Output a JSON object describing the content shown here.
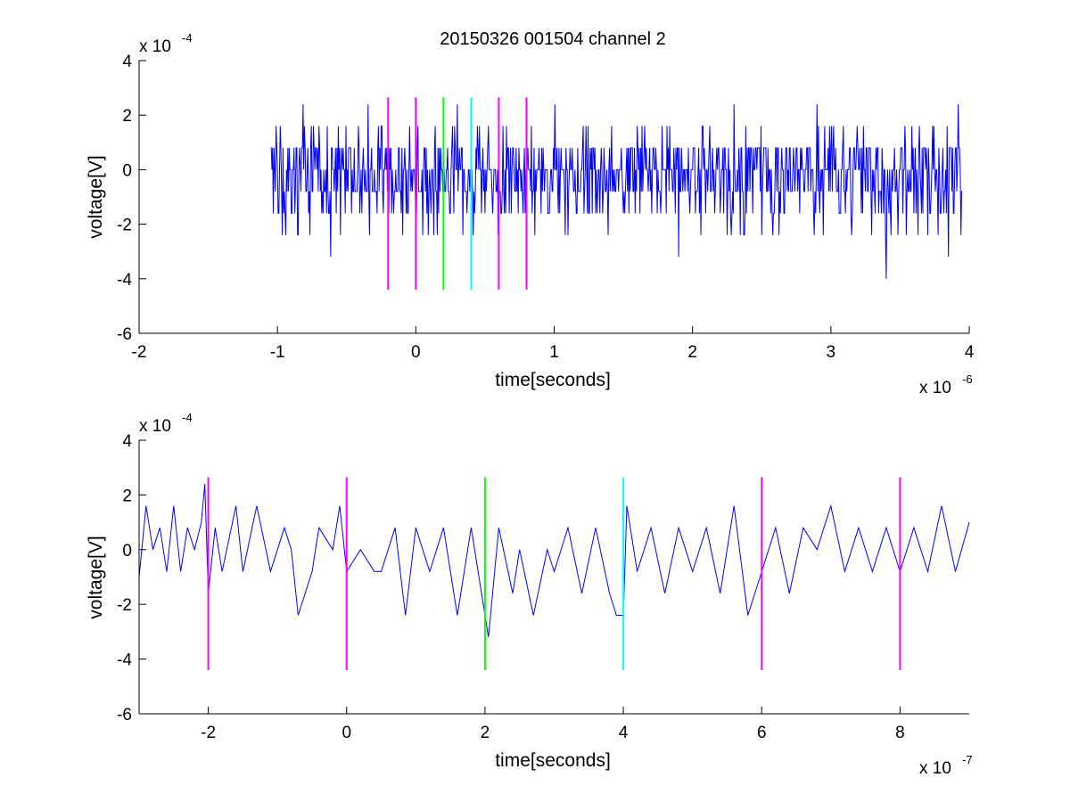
{
  "chart_data": [
    {
      "type": "line",
      "title": "20150326 001504 channel 2",
      "xlabel": "time[seconds]",
      "ylabel": "voltage[V]",
      "x_multiplier": "x 10",
      "x_exponent": "-6",
      "y_multiplier": "x 10",
      "y_exponent": "-4",
      "xlim": [
        -2,
        4
      ],
      "ylim": [
        -6,
        4
      ],
      "x_ticks": [
        -2,
        -1,
        0,
        1,
        2,
        3,
        4
      ],
      "y_ticks": [
        -6,
        -4,
        -2,
        0,
        2,
        4
      ],
      "grid": false,
      "signal": {
        "color": "#0000ff",
        "x_range": [
          -1.05,
          3.95
        ],
        "y_range": [
          -4.0,
          2.4
        ],
        "quantization_step": 0.8,
        "baseline": 0,
        "representative_points": [
          {
            "x": -1.05,
            "y": 0.8
          },
          {
            "x": -1.03,
            "y": -1.6
          },
          {
            "x": -0.98,
            "y": 1.6
          },
          {
            "x": -0.92,
            "y": -0.8
          },
          {
            "x": -0.82,
            "y": 2.4
          },
          {
            "x": -0.75,
            "y": -0.8
          },
          {
            "x": -0.62,
            "y": -3.2
          },
          {
            "x": -0.58,
            "y": -1.6
          },
          {
            "x": -0.35,
            "y": 2.4
          },
          {
            "x": -0.2,
            "y": -1.6
          },
          {
            "x": 0.05,
            "y": -2.4
          },
          {
            "x": 0.3,
            "y": 2.4
          },
          {
            "x": 0.5,
            "y": -1.6
          },
          {
            "x": 0.85,
            "y": 0.8
          },
          {
            "x": 1.0,
            "y": 2.4
          },
          {
            "x": 1.3,
            "y": -1.6
          },
          {
            "x": 1.55,
            "y": -0.8
          },
          {
            "x": 1.9,
            "y": -3.2
          },
          {
            "x": 2.3,
            "y": 2.4
          },
          {
            "x": 2.5,
            "y": -2.4
          },
          {
            "x": 2.9,
            "y": 2.4
          },
          {
            "x": 3.15,
            "y": -2.4
          },
          {
            "x": 3.4,
            "y": -4.0
          },
          {
            "x": 3.6,
            "y": -1.6
          },
          {
            "x": 3.85,
            "y": -3.2
          },
          {
            "x": 3.92,
            "y": 2.4
          },
          {
            "x": 3.95,
            "y": -0.8
          }
        ]
      },
      "markers": [
        {
          "x": -0.2,
          "color": "#ff00ff",
          "ymin": -4.4,
          "ymax": 2.65
        },
        {
          "x": 0.0,
          "color": "#ff00ff",
          "ymin": -4.4,
          "ymax": 2.65
        },
        {
          "x": 0.2,
          "color": "#00ff00",
          "ymin": -4.4,
          "ymax": 2.65
        },
        {
          "x": 0.4,
          "color": "#00ffff",
          "ymin": -4.4,
          "ymax": 2.65
        },
        {
          "x": 0.6,
          "color": "#ff00ff",
          "ymin": -4.4,
          "ymax": 2.65
        },
        {
          "x": 0.8,
          "color": "#ff00ff",
          "ymin": -4.4,
          "ymax": 2.65
        }
      ]
    },
    {
      "type": "line",
      "title": "",
      "xlabel": "time[seconds]",
      "ylabel": "voltage[V]",
      "x_multiplier": "x 10",
      "x_exponent": "-7",
      "y_multiplier": "x 10",
      "y_exponent": "-4",
      "xlim": [
        -3,
        9
      ],
      "ylim": [
        -6,
        4
      ],
      "x_ticks": [
        -2,
        0,
        2,
        4,
        6,
        8
      ],
      "y_ticks": [
        -6,
        -4,
        -2,
        0,
        2,
        4
      ],
      "grid": false,
      "signal": {
        "color": "#0000ff",
        "x_range": [
          -3,
          9
        ],
        "points": [
          {
            "x": -3.0,
            "y": -1.0
          },
          {
            "x": -2.9,
            "y": 1.6
          },
          {
            "x": -2.8,
            "y": 0.0
          },
          {
            "x": -2.7,
            "y": 0.8
          },
          {
            "x": -2.6,
            "y": -0.8
          },
          {
            "x": -2.5,
            "y": 1.6
          },
          {
            "x": -2.4,
            "y": -0.8
          },
          {
            "x": -2.3,
            "y": 0.8
          },
          {
            "x": -2.2,
            "y": 0.0
          },
          {
            "x": -2.1,
            "y": 1.0
          },
          {
            "x": -2.05,
            "y": 2.4
          },
          {
            "x": -2.0,
            "y": -1.6
          },
          {
            "x": -1.9,
            "y": 0.8
          },
          {
            "x": -1.8,
            "y": -0.8
          },
          {
            "x": -1.6,
            "y": 1.6
          },
          {
            "x": -1.5,
            "y": -0.8
          },
          {
            "x": -1.3,
            "y": 1.6
          },
          {
            "x": -1.1,
            "y": -0.8
          },
          {
            "x": -0.9,
            "y": 0.8
          },
          {
            "x": -0.8,
            "y": 0.0
          },
          {
            "x": -0.7,
            "y": -2.4
          },
          {
            "x": -0.5,
            "y": -0.8
          },
          {
            "x": -0.4,
            "y": 0.8
          },
          {
            "x": -0.2,
            "y": 0.0
          },
          {
            "x": -0.1,
            "y": 1.6
          },
          {
            "x": 0.0,
            "y": -0.8
          },
          {
            "x": 0.2,
            "y": 0.0
          },
          {
            "x": 0.4,
            "y": -0.8
          },
          {
            "x": 0.5,
            "y": -0.8
          },
          {
            "x": 0.7,
            "y": 0.8
          },
          {
            "x": 0.85,
            "y": -2.4
          },
          {
            "x": 1.0,
            "y": 0.8
          },
          {
            "x": 1.2,
            "y": -0.8
          },
          {
            "x": 1.4,
            "y": 0.8
          },
          {
            "x": 1.6,
            "y": -2.4
          },
          {
            "x": 1.8,
            "y": 0.8
          },
          {
            "x": 1.9,
            "y": -0.8
          },
          {
            "x": 2.0,
            "y": -2.4
          },
          {
            "x": 2.05,
            "y": -3.2
          },
          {
            "x": 2.2,
            "y": 0.8
          },
          {
            "x": 2.4,
            "y": -1.6
          },
          {
            "x": 2.5,
            "y": 0.0
          },
          {
            "x": 2.7,
            "y": -2.4
          },
          {
            "x": 2.9,
            "y": 0.0
          },
          {
            "x": 3.0,
            "y": -0.8
          },
          {
            "x": 3.2,
            "y": 0.8
          },
          {
            "x": 3.4,
            "y": -1.6
          },
          {
            "x": 3.6,
            "y": 0.8
          },
          {
            "x": 3.8,
            "y": -1.6
          },
          {
            "x": 3.9,
            "y": -2.4
          },
          {
            "x": 4.0,
            "y": -2.4
          },
          {
            "x": 4.05,
            "y": 1.6
          },
          {
            "x": 4.2,
            "y": -0.8
          },
          {
            "x": 4.4,
            "y": 0.8
          },
          {
            "x": 4.6,
            "y": -1.6
          },
          {
            "x": 4.8,
            "y": 0.8
          },
          {
            "x": 5.0,
            "y": -0.8
          },
          {
            "x": 5.2,
            "y": 0.8
          },
          {
            "x": 5.4,
            "y": -1.6
          },
          {
            "x": 5.6,
            "y": 1.6
          },
          {
            "x": 5.8,
            "y": -2.4
          },
          {
            "x": 6.0,
            "y": -0.8
          },
          {
            "x": 6.2,
            "y": 0.8
          },
          {
            "x": 6.4,
            "y": -1.6
          },
          {
            "x": 6.6,
            "y": 0.8
          },
          {
            "x": 6.8,
            "y": 0.0
          },
          {
            "x": 7.0,
            "y": 1.6
          },
          {
            "x": 7.2,
            "y": -0.8
          },
          {
            "x": 7.4,
            "y": 0.8
          },
          {
            "x": 7.6,
            "y": -0.8
          },
          {
            "x": 7.8,
            "y": 0.8
          },
          {
            "x": 8.0,
            "y": -0.8
          },
          {
            "x": 8.2,
            "y": 0.8
          },
          {
            "x": 8.4,
            "y": -0.8
          },
          {
            "x": 8.6,
            "y": 1.6
          },
          {
            "x": 8.8,
            "y": -0.8
          },
          {
            "x": 9.0,
            "y": 1.0
          }
        ]
      },
      "markers": [
        {
          "x": -2,
          "color": "#ff00ff",
          "ymin": -4.4,
          "ymax": 2.65
        },
        {
          "x": 0,
          "color": "#ff00ff",
          "ymin": -4.4,
          "ymax": 2.65
        },
        {
          "x": 2,
          "color": "#00ff00",
          "ymin": -4.4,
          "ymax": 2.65
        },
        {
          "x": 4,
          "color": "#00ffff",
          "ymin": -4.4,
          "ymax": 2.65
        },
        {
          "x": 6,
          "color": "#ff00ff",
          "ymin": -4.4,
          "ymax": 2.65
        },
        {
          "x": 8,
          "color": "#ff00ff",
          "ymin": -4.4,
          "ymax": 2.65
        }
      ]
    }
  ]
}
